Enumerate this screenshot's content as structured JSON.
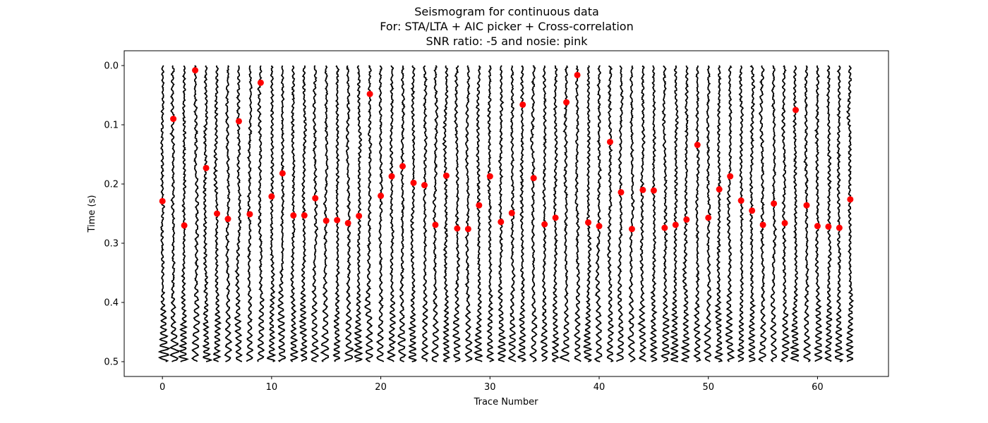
{
  "chart_data": {
    "type": "scatter",
    "title_lines": [
      "Seismogram for continuous data",
      "For: STA/LTA + AIC picker + Cross-correlation",
      "SNR ratio: -5 and nosie: pink"
    ],
    "xlabel": "Trace Number",
    "ylabel": "Time (s)",
    "xlim": [
      -3.5,
      66.5
    ],
    "ylim": [
      0.525,
      -0.025
    ],
    "y_inverted": true,
    "x_ticks": [
      0,
      10,
      20,
      30,
      40,
      50,
      60
    ],
    "x_tick_labels": [
      "0",
      "10",
      "20",
      "30",
      "40",
      "50",
      "60"
    ],
    "y_ticks": [
      0.0,
      0.1,
      0.2,
      0.3,
      0.4,
      0.5
    ],
    "y_tick_labels": [
      "0.0",
      "0.1",
      "0.2",
      "0.3",
      "0.4",
      "0.5"
    ],
    "grid": false,
    "series": [
      {
        "kind": "waveform-traces",
        "color": "#000000",
        "trace_count": 64,
        "time_range": [
          0.0,
          0.5
        ]
      },
      {
        "kind": "picks",
        "color": "#ff0000",
        "x": [
          0,
          1,
          2,
          3,
          4,
          5,
          6,
          7,
          8,
          9,
          10,
          11,
          12,
          13,
          14,
          15,
          16,
          17,
          18,
          19,
          20,
          21,
          22,
          23,
          24,
          25,
          26,
          27,
          28,
          29,
          30,
          31,
          32,
          33,
          34,
          35,
          36,
          37,
          38,
          39,
          40,
          41,
          42,
          43,
          44,
          45,
          46,
          47,
          48,
          49,
          50,
          51,
          52,
          53,
          54,
          55,
          56,
          57,
          58,
          59,
          60,
          61,
          62,
          63
        ],
        "y": [
          0.229,
          0.09,
          0.27,
          0.008,
          0.173,
          0.25,
          0.259,
          0.094,
          0.251,
          0.029,
          0.221,
          0.182,
          0.253,
          0.253,
          0.224,
          0.262,
          0.261,
          0.266,
          0.254,
          0.048,
          0.22,
          0.187,
          0.17,
          0.198,
          0.202,
          0.269,
          0.186,
          0.275,
          0.276,
          0.236,
          0.187,
          0.264,
          0.249,
          0.066,
          0.19,
          0.268,
          0.257,
          0.062,
          0.016,
          0.265,
          0.271,
          0.129,
          0.214,
          0.276,
          0.21,
          0.211,
          0.274,
          0.269,
          0.26,
          0.134,
          0.257,
          0.209,
          0.187,
          0.228,
          0.245,
          0.269,
          0.233,
          0.266,
          0.075,
          0.236,
          0.271,
          0.272,
          0.274,
          0.226
        ]
      }
    ]
  }
}
